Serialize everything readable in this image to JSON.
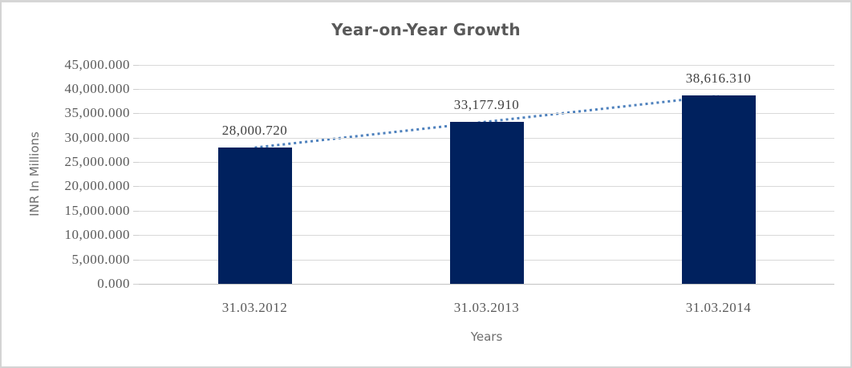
{
  "chart_data": {
    "type": "bar",
    "title": "Year-on-Year Growth",
    "xlabel": "Years",
    "ylabel": "INR In Millions",
    "categories": [
      "31.03.2012",
      "31.03.2013",
      "31.03.2014"
    ],
    "values": [
      28000.72,
      33177.91,
      38616.31
    ],
    "value_labels": [
      "28,000.720",
      "33,177.910",
      "38,616.310"
    ],
    "ylim": [
      0,
      45000
    ],
    "ytick_step": 5000,
    "ytick_labels": [
      "0.000",
      "5,000.000",
      "10,000.000",
      "15,000.000",
      "20,000.000",
      "25,000.000",
      "30,000.000",
      "35,000.000",
      "40,000.000",
      "45,000.000"
    ],
    "grid": true,
    "legend": "none",
    "trendline": {
      "type": "linear",
      "style": "dotted",
      "color": "#4e81bd"
    },
    "colors": {
      "bar": "#00215e",
      "gridline": "#d9d9d9",
      "axis_line": "#c3c3c3",
      "title_text": "#595959",
      "tick_text": "#595959",
      "data_label_text": "#404040"
    }
  }
}
